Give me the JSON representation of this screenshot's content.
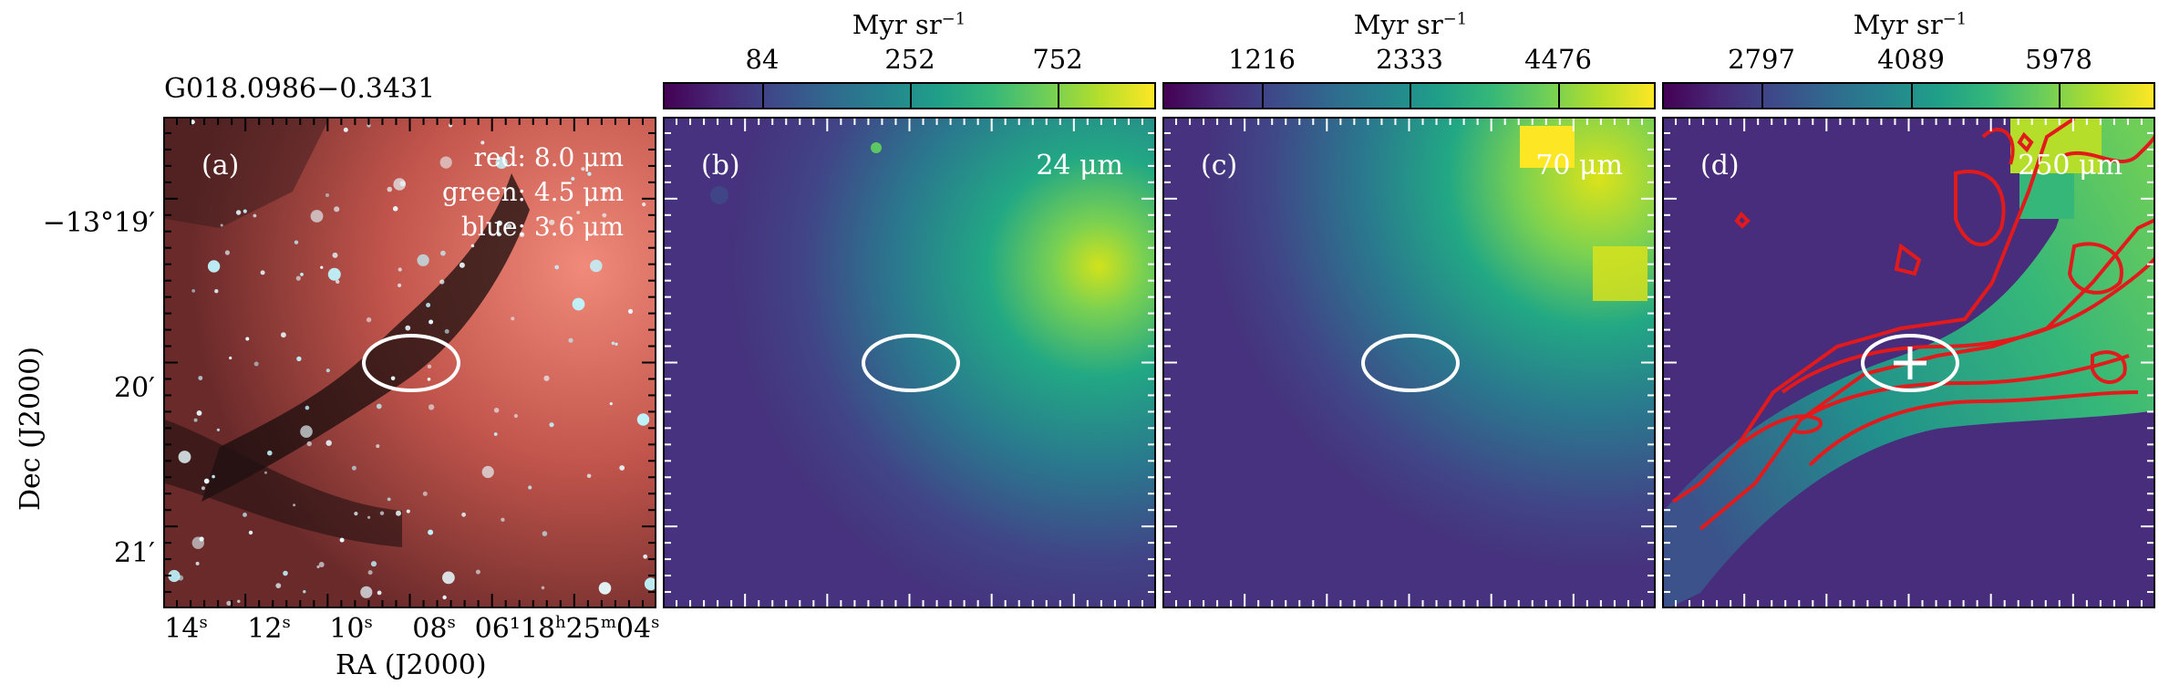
{
  "source_title": "G018.0986−0.3431",
  "panels": [
    {
      "label": "(a)",
      "band_lines": [
        "red: 8.0 μm",
        "green: 4.5 μm",
        "blue: 3.6 μm"
      ]
    },
    {
      "label": "(b)",
      "band": "24 μm",
      "colorbar_title": "Myr sr",
      "colorbar_exp": "−1",
      "colorbar_ticks": [
        "84",
        "252",
        "752"
      ]
    },
    {
      "label": "(c)",
      "band": "70 μm",
      "colorbar_title": "Myr sr",
      "colorbar_exp": "−1",
      "colorbar_ticks": [
        "1216",
        "2333",
        "4476"
      ]
    },
    {
      "label": "(d)",
      "band": "250 μm",
      "colorbar_title": "Myr sr",
      "colorbar_exp": "−1",
      "colorbar_ticks": [
        "2797",
        "4089",
        "5978"
      ]
    }
  ],
  "axes": {
    "ylabel": "Dec (J2000)",
    "xlabel": "RA (J2000)",
    "yticks": [
      "−13°19′",
      "20′",
      "21′"
    ],
    "xticks": [
      {
        "main": "14",
        "sup": "s"
      },
      {
        "main": "12",
        "sup": "s"
      },
      {
        "main": "10",
        "sup": "s"
      },
      {
        "main": "08",
        "sup": "s"
      },
      {
        "main": "06¹18",
        "sup": "h"
      },
      {
        "main": "25",
        "sup": "m"
      },
      {
        "main": "04",
        "sup": "s"
      }
    ]
  },
  "colors": {
    "contour": "#e31a1c",
    "aperture": "#ffffff",
    "viridis_dark": "#440154",
    "viridis_yellow": "#fde725"
  }
}
